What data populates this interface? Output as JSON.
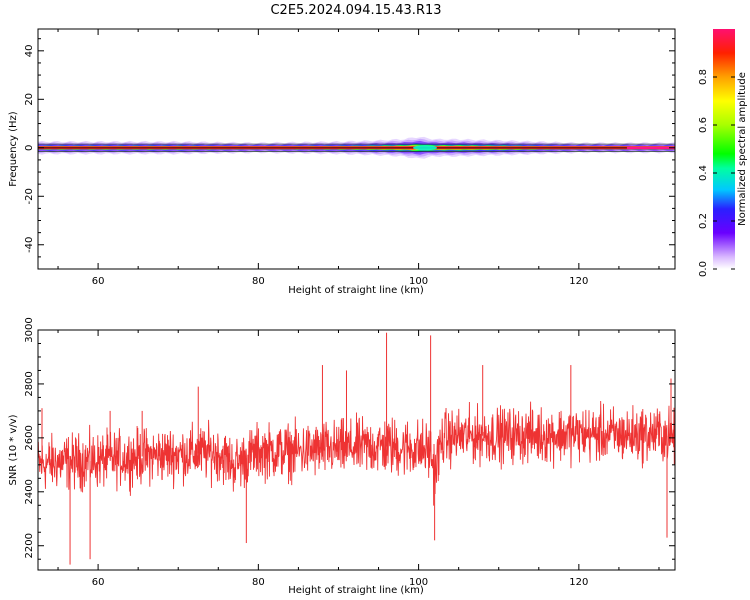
{
  "title": "C2E5.2024.094.15.43.R13",
  "chart_data": [
    {
      "type": "heatmap",
      "xlabel": "Height of straight line (km)",
      "ylabel": "Frequency (Hz)",
      "xlim": [
        52.5,
        132
      ],
      "ylim": [
        -50,
        49
      ],
      "xticks": [
        60,
        80,
        100,
        120
      ],
      "xtick_labels": [
        "60",
        "80",
        "100",
        "120"
      ],
      "yticks": [
        40,
        20,
        0,
        -20,
        -40
      ],
      "ytick_labels": [
        "40",
        "20",
        "0",
        "-20",
        "-40"
      ],
      "grid": false,
      "description_series": [
        {
          "name": "",
          "x": [
            52.5,
            60,
            70,
            80,
            90,
            95,
            98,
            100,
            102,
            105,
            110,
            115,
            120,
            125,
            132
          ],
          "halfwidth_hz": [
            2.5,
            2.5,
            2.5,
            2.0,
            2.5,
            3.0,
            3.5,
            4.5,
            3.5,
            3.5,
            3.0,
            2.5,
            2.0,
            2.0,
            2.0
          ]
        }
      ],
      "colorbar": {
        "label": "Normalized spectral amplitude",
        "ticks": [
          0.0,
          0.2,
          0.4,
          0.6,
          0.8
        ],
        "tick_labels": [
          "0.0",
          "0.2",
          "0.4",
          "0.6",
          "0.8"
        ],
        "range": [
          0.0,
          1.0
        ]
      }
    },
    {
      "type": "line",
      "xlabel": "Height of straight line (km)",
      "ylabel": "SNR (10 * v/v)",
      "xlim": [
        52.5,
        132
      ],
      "ylim": [
        2110,
        3000
      ],
      "xticks": [
        60,
        80,
        100,
        120
      ],
      "xtick_labels": [
        "60",
        "80",
        "100",
        "120"
      ],
      "yticks": [
        2200,
        2400,
        2600,
        2800,
        3000
      ],
      "ytick_labels": [
        "2200",
        "2400",
        "2600",
        "2800",
        "3000"
      ],
      "grid": false,
      "series": [
        {
          "name": "",
          "color": "#ee3333",
          "x": [
            52.5,
            55,
            60,
            65,
            70,
            75,
            77,
            80,
            85,
            90,
            95,
            100,
            101.5,
            102,
            103,
            105,
            110,
            115,
            120,
            125,
            130,
            132
          ],
          "y": [
            2500,
            2510,
            2515,
            2530,
            2540,
            2545,
            2500,
            2550,
            2550,
            2560,
            2570,
            2560,
            2550,
            2470,
            2600,
            2605,
            2610,
            2610,
            2615,
            2610,
            2615,
            2600
          ],
          "spread": [
            150,
            150,
            150,
            150,
            150,
            150,
            150,
            150,
            150,
            150,
            160,
            160,
            160,
            170,
            150,
            150,
            150,
            150,
            150,
            150,
            150,
            150
          ],
          "peaks": [
            {
              "x": 53.0,
              "y": 2710
            },
            {
              "x": 56.5,
              "y": 2130
            },
            {
              "x": 59.0,
              "y": 2150
            },
            {
              "x": 61.5,
              "y": 2700
            },
            {
              "x": 65.5,
              "y": 2700
            },
            {
              "x": 72.5,
              "y": 2790
            },
            {
              "x": 78.5,
              "y": 2210
            },
            {
              "x": 88.0,
              "y": 2870
            },
            {
              "x": 91.0,
              "y": 2850
            },
            {
              "x": 96.0,
              "y": 2990
            },
            {
              "x": 101.5,
              "y": 2980
            },
            {
              "x": 102.0,
              "y": 2220
            },
            {
              "x": 108.0,
              "y": 2870
            },
            {
              "x": 119.0,
              "y": 2870
            },
            {
              "x": 131.0,
              "y": 2230
            },
            {
              "x": 131.5,
              "y": 2820
            }
          ]
        }
      ]
    }
  ]
}
